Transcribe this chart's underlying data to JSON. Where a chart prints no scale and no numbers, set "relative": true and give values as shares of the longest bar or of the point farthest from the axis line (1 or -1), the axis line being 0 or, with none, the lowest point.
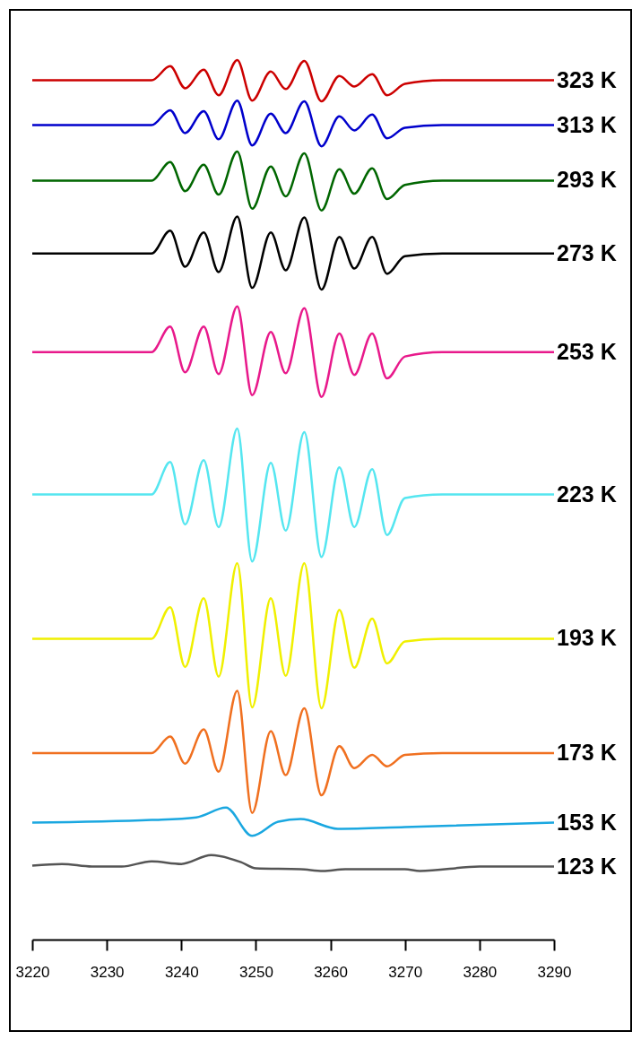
{
  "chart_data": {
    "type": "line",
    "relative": true,
    "xlim": [
      3220,
      3290
    ],
    "xticks": [
      3220,
      3230,
      3240,
      3250,
      3260,
      3270,
      3280,
      3290
    ],
    "series": [
      {
        "name": "323 K",
        "color": "#cc0000",
        "x": [
          3220,
          3236,
          3238.5,
          3240.5,
          3243,
          3245,
          3247.5,
          3249.5,
          3252,
          3254,
          3256.5,
          3258.8,
          3261.2,
          3263.2,
          3265.6,
          3267.6,
          3270,
          3275,
          3290
        ],
        "values": [
          0.977,
          0.977,
          0.993,
          0.968,
          0.989,
          0.96,
          1.0,
          0.954,
          0.987,
          0.967,
          0.999,
          0.953,
          0.982,
          0.97,
          0.984,
          0.96,
          0.973,
          0.977,
          0.977
        ]
      },
      {
        "name": "313 K",
        "color": "#0000cc",
        "x": [
          3220,
          3236,
          3238.5,
          3240.5,
          3243,
          3245,
          3247.5,
          3249.5,
          3252,
          3254,
          3256.5,
          3258.8,
          3261.2,
          3263.2,
          3265.6,
          3267.6,
          3270,
          3275,
          3290
        ],
        "values": [
          0.926,
          0.926,
          0.943,
          0.917,
          0.942,
          0.91,
          0.954,
          0.903,
          0.939,
          0.917,
          0.953,
          0.902,
          0.936,
          0.92,
          0.938,
          0.911,
          0.923,
          0.926,
          0.926
        ]
      },
      {
        "name": "293 K",
        "color": "#006600",
        "x": [
          3220,
          3236,
          3238.5,
          3240.5,
          3243,
          3245,
          3247.5,
          3249.5,
          3252,
          3254,
          3256.5,
          3258.8,
          3261.2,
          3263.2,
          3265.6,
          3267.6,
          3270,
          3275,
          3290
        ],
        "values": [
          0.863,
          0.863,
          0.884,
          0.851,
          0.881,
          0.847,
          0.896,
          0.831,
          0.879,
          0.845,
          0.894,
          0.829,
          0.876,
          0.848,
          0.877,
          0.842,
          0.858,
          0.863,
          0.863
        ]
      },
      {
        "name": "273 K",
        "color": "#000000",
        "x": [
          3220,
          3236,
          3238.5,
          3240.5,
          3243,
          3245,
          3247.5,
          3249.5,
          3252,
          3254,
          3256.5,
          3258.8,
          3261.2,
          3263.2,
          3265.6,
          3267.6,
          3270,
          3275,
          3290
        ],
        "values": [
          0.78,
          0.78,
          0.806,
          0.765,
          0.804,
          0.759,
          0.822,
          0.741,
          0.804,
          0.761,
          0.821,
          0.739,
          0.799,
          0.763,
          0.799,
          0.757,
          0.777,
          0.78,
          0.78
        ]
      },
      {
        "name": "253 K",
        "color": "#e8198b",
        "x": [
          3220,
          3236,
          3238.5,
          3240.5,
          3243,
          3245,
          3247.5,
          3249.5,
          3252,
          3254,
          3256.5,
          3258.8,
          3261.2,
          3263.2,
          3265.6,
          3267.6,
          3270,
          3275,
          3290
        ],
        "values": [
          0.668,
          0.668,
          0.697,
          0.645,
          0.697,
          0.643,
          0.72,
          0.619,
          0.691,
          0.644,
          0.718,
          0.617,
          0.689,
          0.642,
          0.689,
          0.638,
          0.663,
          0.668,
          0.668
        ]
      },
      {
        "name": "223 K",
        "color": "#55e6f0",
        "x": [
          3220,
          3236,
          3238.5,
          3240.5,
          3243,
          3245,
          3247.5,
          3249.5,
          3252,
          3254,
          3256.5,
          3258.8,
          3261.2,
          3263.2,
          3265.6,
          3267.6,
          3270,
          3275,
          3290
        ],
        "values": [
          0.506,
          0.506,
          0.543,
          0.472,
          0.545,
          0.469,
          0.581,
          0.43,
          0.542,
          0.465,
          0.577,
          0.435,
          0.537,
          0.469,
          0.535,
          0.46,
          0.502,
          0.506,
          0.506
        ]
      },
      {
        "name": "193 K",
        "color": "#f0f000",
        "x": [
          3220,
          3236,
          3238.5,
          3240.5,
          3243,
          3245,
          3247.5,
          3249.5,
          3252,
          3254,
          3256.5,
          3258.8,
          3261.2,
          3263.2,
          3265.6,
          3267.6,
          3270,
          3275,
          3290
        ],
        "values": [
          0.342,
          0.342,
          0.378,
          0.31,
          0.388,
          0.299,
          0.428,
          0.264,
          0.388,
          0.3,
          0.428,
          0.263,
          0.375,
          0.309,
          0.365,
          0.314,
          0.339,
          0.342,
          0.342
        ]
      },
      {
        "name": "173 K",
        "color": "#f07020",
        "x": [
          3220,
          3236,
          3238.5,
          3240.5,
          3243,
          3245,
          3247.5,
          3249.5,
          3252,
          3254,
          3256.5,
          3258.8,
          3261.2,
          3263.2,
          3265.6,
          3267.6,
          3270,
          3275,
          3290
        ],
        "values": [
          0.212,
          0.212,
          0.231,
          0.2,
          0.239,
          0.191,
          0.283,
          0.144,
          0.237,
          0.187,
          0.263,
          0.164,
          0.22,
          0.195,
          0.21,
          0.197,
          0.21,
          0.212,
          0.212
        ]
      },
      {
        "name": "153 K",
        "color": "#1aa7e0",
        "x": [
          3220,
          3236,
          3242,
          3246,
          3249.5,
          3253,
          3256,
          3261,
          3270,
          3290
        ],
        "values": [
          0.133,
          0.136,
          0.139,
          0.15,
          0.118,
          0.134,
          0.137,
          0.126,
          0.128,
          0.133
        ]
      },
      {
        "name": "123 K",
        "color": "#555555",
        "x": [
          3220,
          3224,
          3228,
          3232,
          3236,
          3240,
          3244,
          3248,
          3250,
          3256,
          3259,
          3262,
          3270,
          3272,
          3280,
          3290
        ],
        "values": [
          0.084,
          0.086,
          0.083,
          0.083,
          0.089,
          0.086,
          0.096,
          0.088,
          0.081,
          0.08,
          0.078,
          0.08,
          0.08,
          0.078,
          0.083,
          0.083
        ]
      }
    ]
  }
}
